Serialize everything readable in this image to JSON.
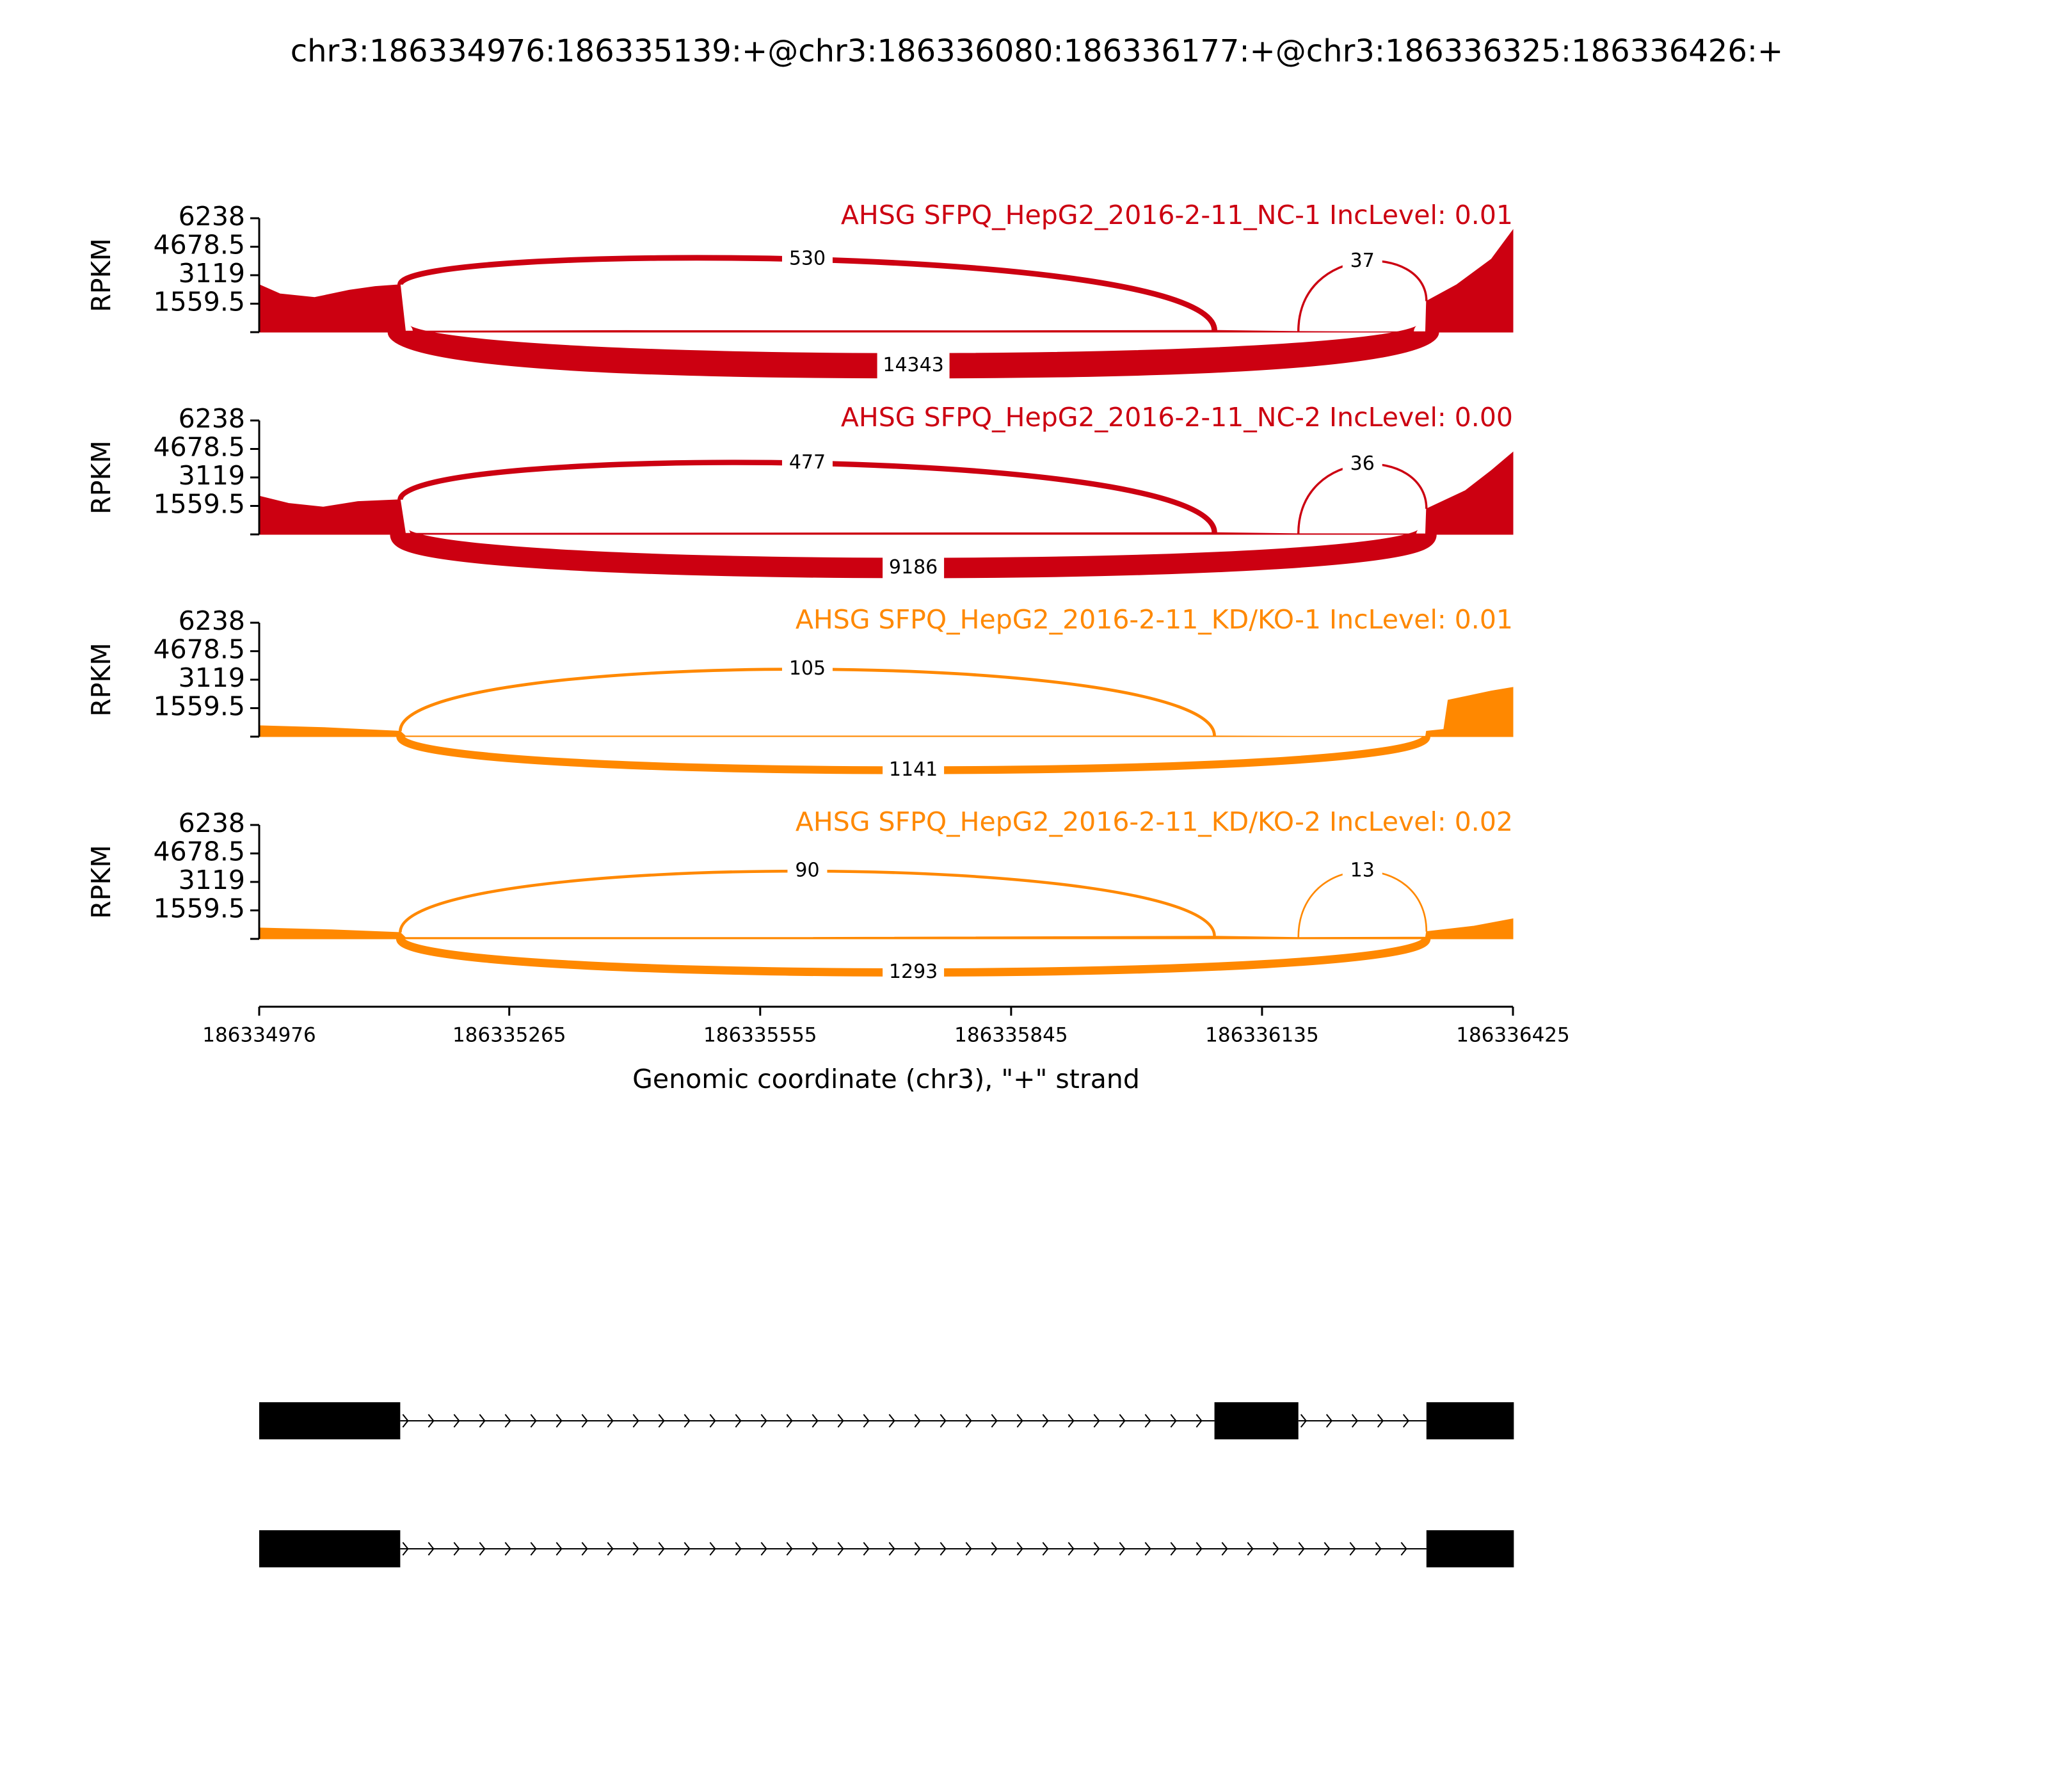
{
  "title": "chr3:186334976:186335139:+@chr3:186336080:186336177:+@chr3:186336325:186336426:+",
  "x_axis": {
    "xlim": [
      186334976,
      186336425
    ],
    "xticks": [
      186334976,
      186335265,
      186335555,
      186335845,
      186336135,
      186336425
    ],
    "xlabel": "Genomic coordinate (chr3), \"+\" strand"
  },
  "chart_data": [
    {
      "type": "sashimi",
      "label": "AHSG SFPQ_HepG2_2016-2-11_NC-1 IncLevel: 0.01",
      "color": "#cc0011",
      "ylabel": "RPKM",
      "ylim": [
        0,
        6238
      ],
      "yticks": [
        1559.5,
        3119,
        4678.5,
        6238
      ],
      "coverage": {
        "x": [
          186334976,
          186335000,
          186335040,
          186335080,
          186335110,
          186335139,
          186335145,
          186335400,
          186335800,
          186336080,
          186336177,
          186336250,
          186336324,
          186336325,
          186336360,
          186336400,
          186336425
        ],
        "values": [
          2600,
          2100,
          1900,
          2300,
          2500,
          2600,
          60,
          90,
          80,
          100,
          40,
          20,
          30,
          1700,
          2600,
          4000,
          5600
        ]
      },
      "junctions": [
        {
          "start": 186335139,
          "end": 186336080,
          "count": 530,
          "side": "above"
        },
        {
          "start": 186336177,
          "end": 186336325,
          "count": 37,
          "side": "above"
        },
        {
          "start": 186335139,
          "end": 186336325,
          "count": 14343,
          "side": "below"
        }
      ]
    },
    {
      "type": "sashimi",
      "label": "AHSG SFPQ_HepG2_2016-2-11_NC-2 IncLevel: 0.00",
      "color": "#cc0011",
      "ylabel": "RPKM",
      "ylim": [
        0,
        6238
      ],
      "yticks": [
        1559.5,
        3119,
        4678.5,
        6238
      ],
      "coverage": {
        "x": [
          186334976,
          186335010,
          186335050,
          186335090,
          186335139,
          186335145,
          186335500,
          186336080,
          186336177,
          186336324,
          186336325,
          186336370,
          186336400,
          186336425
        ],
        "values": [
          2100,
          1700,
          1500,
          1800,
          1900,
          60,
          80,
          100,
          40,
          30,
          1400,
          2400,
          3500,
          4500
        ]
      },
      "junctions": [
        {
          "start": 186335139,
          "end": 186336080,
          "count": 477,
          "side": "above"
        },
        {
          "start": 186336177,
          "end": 186336325,
          "count": 36,
          "side": "above"
        },
        {
          "start": 186335139,
          "end": 186336325,
          "count": 9186,
          "side": "below"
        }
      ]
    },
    {
      "type": "sashimi",
      "label": "AHSG SFPQ_HepG2_2016-2-11_KD/KO-1 IncLevel: 0.01",
      "color": "#ff8800",
      "ylabel": "RPKM",
      "ylim": [
        0,
        6238
      ],
      "yticks": [
        1559.5,
        3119,
        4678.5,
        6238
      ],
      "coverage": {
        "x": [
          186334976,
          186335050,
          186335139,
          186335145,
          186335600,
          186336080,
          186336177,
          186336324,
          186336325,
          186336345,
          186336350,
          186336400,
          186336425
        ],
        "values": [
          600,
          500,
          300,
          40,
          40,
          40,
          20,
          20,
          300,
          400,
          2000,
          2500,
          2700
        ]
      },
      "junctions": [
        {
          "start": 186335139,
          "end": 186336080,
          "count": 105,
          "side": "above"
        },
        {
          "start": 186335139,
          "end": 186336325,
          "count": 1141,
          "side": "below"
        }
      ]
    },
    {
      "type": "sashimi",
      "label": "AHSG SFPQ_HepG2_2016-2-11_KD/KO-2 IncLevel: 0.02",
      "color": "#ff8800",
      "ylabel": "RPKM",
      "ylim": [
        0,
        6238
      ],
      "yticks": [
        1559.5,
        3119,
        4678.5,
        6238
      ],
      "coverage": {
        "x": [
          186334976,
          186335060,
          186335139,
          186335145,
          186335600,
          186336080,
          186336177,
          186336324,
          186336325,
          186336380,
          186336425
        ],
        "values": [
          600,
          500,
          350,
          80,
          80,
          150,
          80,
          100,
          400,
          700,
          1100
        ]
      },
      "junctions": [
        {
          "start": 186335139,
          "end": 186336080,
          "count": 90,
          "side": "above"
        },
        {
          "start": 186336177,
          "end": 186336325,
          "count": 13,
          "side": "above"
        },
        {
          "start": 186335139,
          "end": 186336325,
          "count": 1293,
          "side": "below"
        }
      ]
    }
  ],
  "gene_model": {
    "transcripts": [
      {
        "exons": [
          [
            186334976,
            186335139
          ],
          [
            186336080,
            186336177
          ],
          [
            186336325,
            186336426
          ]
        ]
      },
      {
        "exons": [
          [
            186334976,
            186335139
          ],
          [
            186336325,
            186336426
          ]
        ]
      }
    ]
  }
}
